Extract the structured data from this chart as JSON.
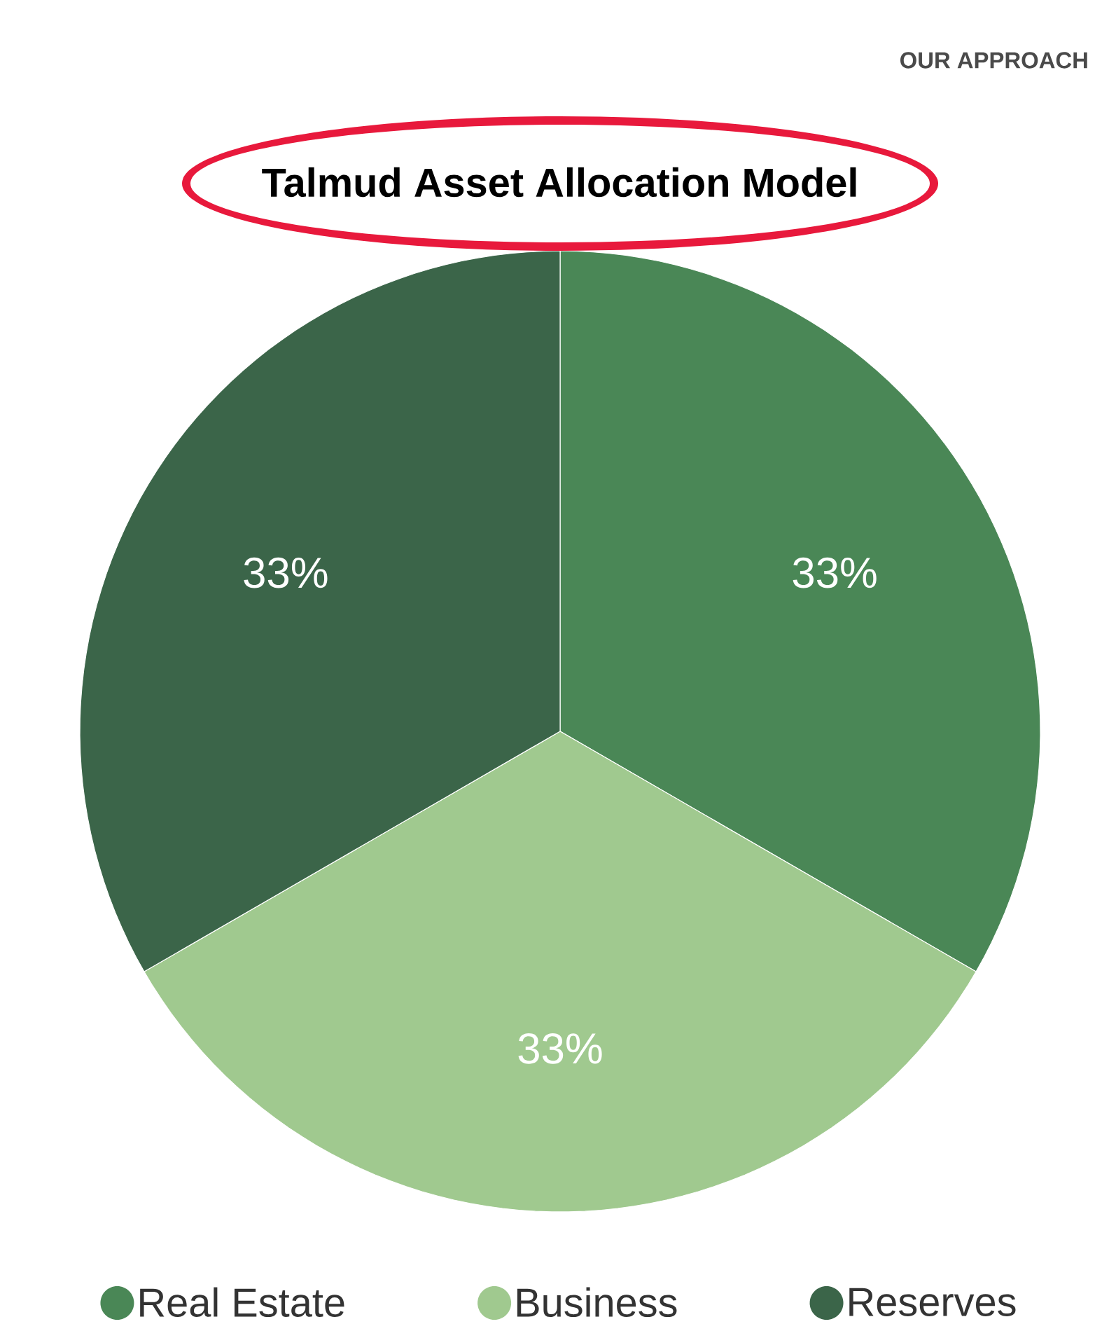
{
  "chart_data": {
    "type": "pie",
    "title": "Talmud Asset Allocation Model",
    "categories": [
      "Real Estate",
      "Business",
      "Reserves"
    ],
    "values": [
      33,
      33,
      33
    ],
    "colors": [
      "#4a8756",
      "#a0c98f",
      "#3b6549"
    ],
    "value_labels": [
      "33%",
      "33%",
      "33%"
    ],
    "legend": "bottom",
    "annotations": [
      "OUR APPROACH"
    ]
  }
}
